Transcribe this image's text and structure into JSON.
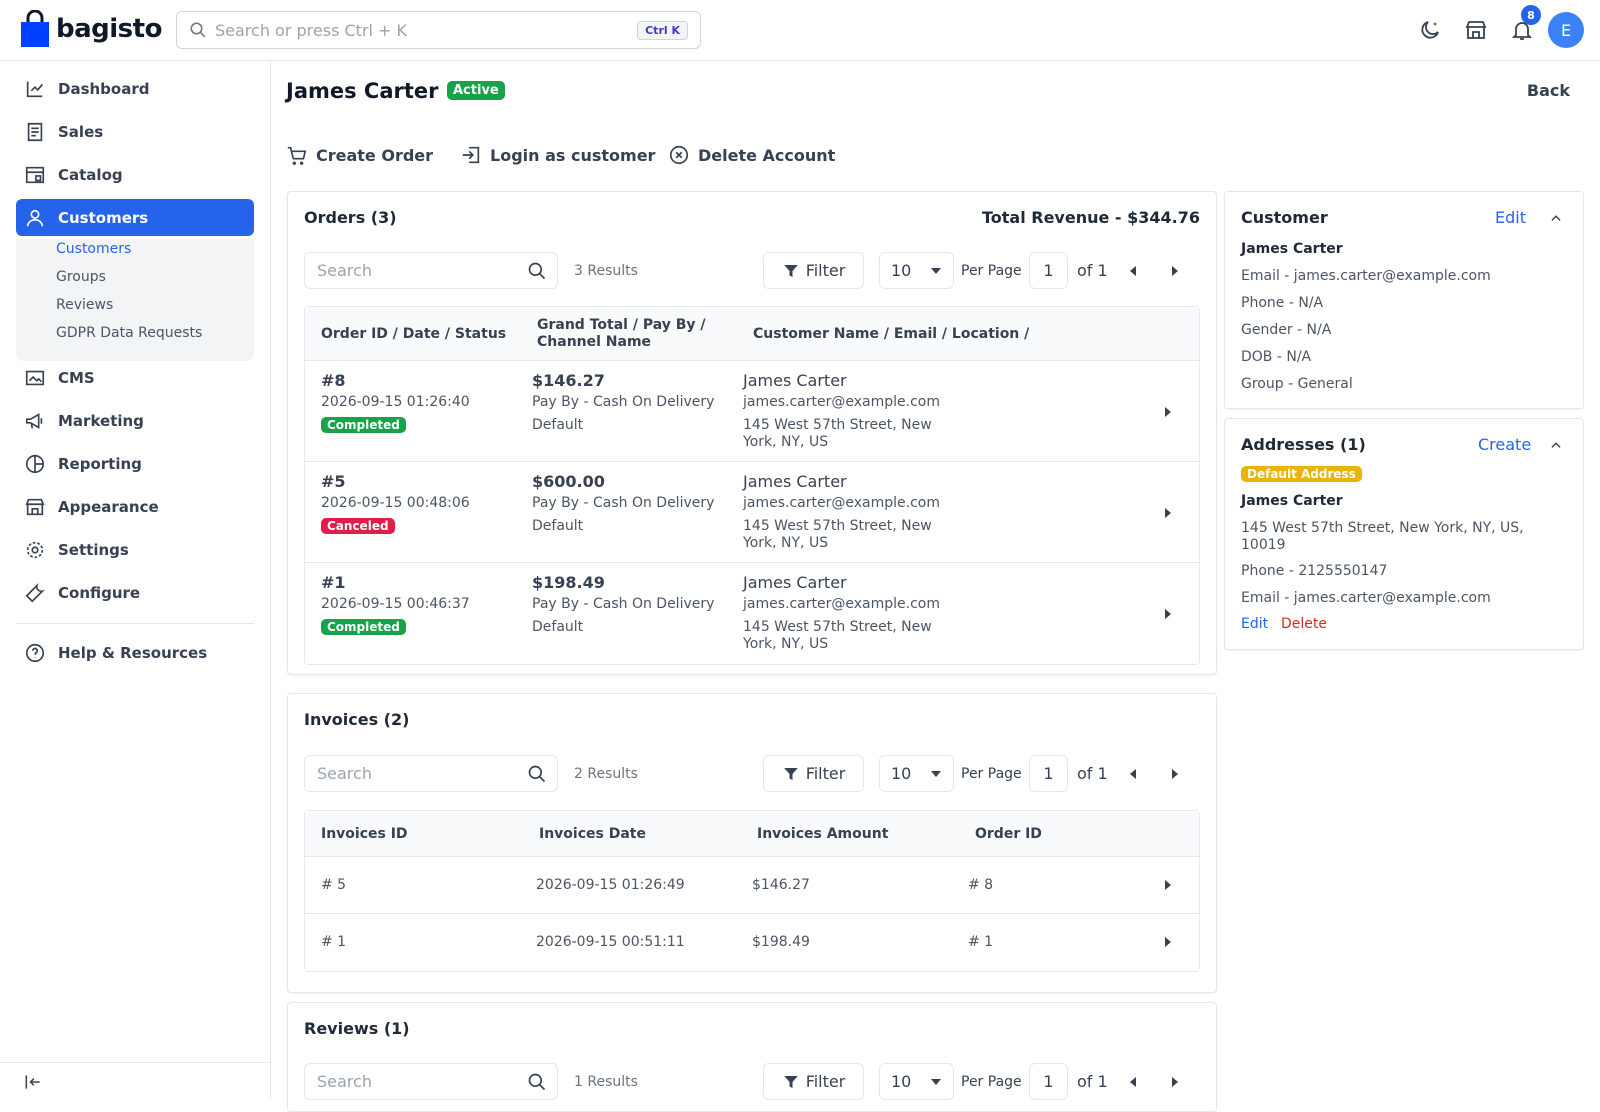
{
  "brand": {
    "name": "bagisto"
  },
  "search": {
    "placeholder": "Search or press Ctrl + K",
    "shortcut": "Ctrl K"
  },
  "notifications": {
    "count": "8"
  },
  "user": {
    "initial": "E"
  },
  "sidebar": {
    "items": [
      {
        "label": "Dashboard"
      },
      {
        "label": "Sales"
      },
      {
        "label": "Catalog"
      },
      {
        "label": "Customers"
      },
      {
        "label": "CMS"
      },
      {
        "label": "Marketing"
      },
      {
        "label": "Reporting"
      },
      {
        "label": "Appearance"
      },
      {
        "label": "Settings"
      },
      {
        "label": "Configure"
      },
      {
        "label": "Help & Resources"
      }
    ],
    "sub": [
      {
        "label": "Customers"
      },
      {
        "label": "Groups"
      },
      {
        "label": "Reviews"
      },
      {
        "label": "GDPR Data Requests"
      }
    ]
  },
  "page": {
    "title": "James Carter",
    "status": "Active",
    "back": "Back"
  },
  "actions": {
    "create_order": "Create Order",
    "login": "Login as customer",
    "delete": "Delete Account"
  },
  "orders": {
    "title": "Orders (3)",
    "revenue": "Total Revenue - $344.76",
    "search_placeholder": "Search",
    "results": "3 Results",
    "filter": "Filter",
    "per_page": "10",
    "per_page_label": "Per Page",
    "page": "1",
    "of": "of 1",
    "headers": {
      "c1": "Order ID / Date / Status",
      "c2a": "Grand Total / Pay By /",
      "c2b": "Channel Name",
      "c3": "Customer Name / Email / Location /"
    },
    "rows": [
      {
        "id": "#8",
        "date": "2026-09-15 01:26:40",
        "status": "Completed",
        "total": "$146.27",
        "pay": "Pay By - Cash On Delivery",
        "channel": "Default",
        "name": "James Carter",
        "email": "james.carter@example.com",
        "loc1": "145 West 57th Street, New",
        "loc2": "York, NY, US"
      },
      {
        "id": "#5",
        "date": "2026-09-15 00:48:06",
        "status": "Canceled",
        "total": "$600.00",
        "pay": "Pay By - Cash On Delivery",
        "channel": "Default",
        "name": "James Carter",
        "email": "james.carter@example.com",
        "loc1": "145 West 57th Street, New",
        "loc2": "York, NY, US"
      },
      {
        "id": "#1",
        "date": "2026-09-15 00:46:37",
        "status": "Completed",
        "total": "$198.49",
        "pay": "Pay By - Cash On Delivery",
        "channel": "Default",
        "name": "James Carter",
        "email": "james.carter@example.com",
        "loc1": "145 West 57th Street, New",
        "loc2": "York, NY, US"
      }
    ]
  },
  "invoices": {
    "title": "Invoices (2)",
    "search_placeholder": "Search",
    "results": "2 Results",
    "filter": "Filter",
    "per_page": "10",
    "per_page_label": "Per Page",
    "page": "1",
    "of": "of 1",
    "headers": {
      "c1": "Invoices ID",
      "c2": "Invoices Date",
      "c3": "Invoices Amount",
      "c4": "Order ID"
    },
    "rows": [
      {
        "id": "# 5",
        "date": "2026-09-15 01:26:49",
        "amount": "$146.27",
        "order": "# 8"
      },
      {
        "id": "# 1",
        "date": "2026-09-15 00:51:11",
        "amount": "$198.49",
        "order": "# 1"
      }
    ]
  },
  "reviews": {
    "title": "Reviews (1)",
    "search_placeholder": "Search",
    "results": "1 Results",
    "filter": "Filter",
    "per_page": "10",
    "per_page_label": "Per Page",
    "page": "1",
    "of": "of 1"
  },
  "customer_card": {
    "title": "Customer",
    "edit": "Edit",
    "name": "James Carter",
    "email": "Email - james.carter@example.com",
    "phone": "Phone - N/A",
    "gender": "Gender - N/A",
    "dob": "DOB - N/A",
    "group": "Group - General"
  },
  "addresses": {
    "title": "Addresses (1)",
    "create": "Create",
    "default": "Default Address",
    "name": "James Carter",
    "addr1": "145 West 57th Street, New York, NY, US,",
    "addr2": "10019",
    "phone": "Phone - 2125550147",
    "email": "Email - james.carter@example.com",
    "edit": "Edit",
    "delete": "Delete"
  }
}
